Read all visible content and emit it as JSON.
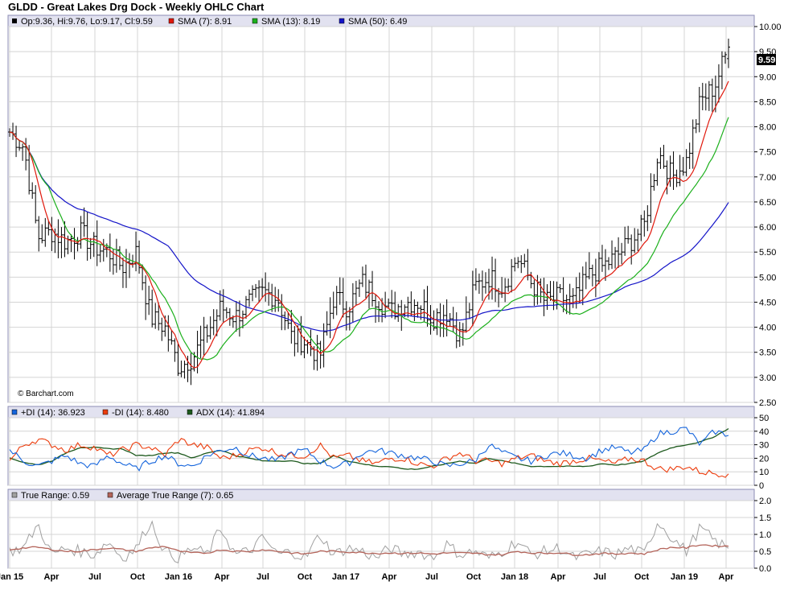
{
  "title": "GLDD - Great Lakes Drg Dock - Weekly OHLC Chart",
  "copyright": "© Barchart.com",
  "colors": {
    "bg": "#ffffff",
    "panel_border": "#8c8cb4",
    "header_bg": "#e2e2f0",
    "grid": "#d4d4d4",
    "ohlc": "#000000",
    "sma7": "#e0180c",
    "sma13": "#1cb01c",
    "sma50": "#1414c8",
    "pdi": "#1464dc",
    "mdi": "#ec3c0c",
    "adx": "#1e5a1e",
    "tr": "#a0a0a0",
    "atr": "#b4645a"
  },
  "price_legend": {
    "ohlc": "Op:9.36, Hi:9.76, Lo:9.17, Cl:9.59",
    "sma7": "SMA (7): 8.91",
    "sma13": "SMA (13): 8.19",
    "sma50": "SMA (50): 6.49"
  },
  "dmi_legend": {
    "pdi": "+DI (14): 36.923",
    "mdi": "-DI (14): 8.480",
    "adx": "ADX (14): 41.894"
  },
  "tr_legend": {
    "tr": "True Range: 0.59",
    "atr": "Average True Range (7): 0.65"
  },
  "last_price_label": "9.59",
  "x_labels": [
    "Jan 15",
    "Apr",
    "Jul",
    "Oct",
    "Jan 16",
    "Apr",
    "Jul",
    "Oct",
    "Jan 17",
    "Apr",
    "Jul",
    "Oct",
    "Jan 18",
    "Apr",
    "Jul",
    "Oct",
    "Jan 19",
    "Apr"
  ],
  "chart_data": [
    {
      "type": "ohlc",
      "title": "GLDD - Great Lakes Drg Dock - Weekly OHLC Chart",
      "frequency": "weekly",
      "x_range": [
        "Jan 15",
        "Apr 19"
      ],
      "ylim": [
        2.5,
        10.0
      ],
      "y_ticks": [
        2.5,
        3.0,
        3.5,
        4.0,
        4.5,
        5.0,
        5.5,
        6.0,
        6.5,
        7.0,
        7.5,
        8.0,
        8.5,
        9.0,
        9.5,
        10.0
      ],
      "y_tick_labels": [
        "2.50",
        "3.00",
        "3.50",
        "4.00",
        "4.50",
        "5.00",
        "5.50",
        "6.00",
        "6.50",
        "7.00",
        "7.50",
        "8.00",
        "8.50",
        "9.00",
        "9.50",
        "10.00"
      ],
      "grid": true,
      "last_bar": {
        "open": 9.36,
        "high": 9.76,
        "low": 9.17,
        "close": 9.59
      },
      "close_path": [
        {
          "x": "Jan 15",
          "y": 7.9
        },
        {
          "x": "Feb 15",
          "y": 7.6
        },
        {
          "x": "Mar 15",
          "y": 5.8
        },
        {
          "x": "Apr 15",
          "y": 5.9
        },
        {
          "x": "May 15",
          "y": 5.7
        },
        {
          "x": "Jun 15",
          "y": 5.9
        },
        {
          "x": "Jul 15",
          "y": 5.6
        },
        {
          "x": "Aug 15",
          "y": 5.5
        },
        {
          "x": "Sep 15",
          "y": 5.2
        },
        {
          "x": "Oct 15",
          "y": 5.5
        },
        {
          "x": "Nov 15",
          "y": 4.2
        },
        {
          "x": "Dec 15",
          "y": 4.0
        },
        {
          "x": "Jan 16",
          "y": 3.2
        },
        {
          "x": "Feb 16",
          "y": 3.4
        },
        {
          "x": "Mar 16",
          "y": 3.9
        },
        {
          "x": "Apr 16",
          "y": 4.4
        },
        {
          "x": "May 16",
          "y": 4.2
        },
        {
          "x": "Jun 16",
          "y": 4.5
        },
        {
          "x": "Jul 16",
          "y": 4.7
        },
        {
          "x": "Aug 16",
          "y": 4.6
        },
        {
          "x": "Sep 16",
          "y": 3.8
        },
        {
          "x": "Oct 16",
          "y": 3.7
        },
        {
          "x": "Nov 16",
          "y": 3.4
        },
        {
          "x": "Dec 16",
          "y": 4.6
        },
        {
          "x": "Jan 17",
          "y": 4.4
        },
        {
          "x": "Feb 17",
          "y": 4.9
        },
        {
          "x": "Mar 17",
          "y": 4.6
        },
        {
          "x": "Apr 17",
          "y": 4.3
        },
        {
          "x": "May 17",
          "y": 4.5
        },
        {
          "x": "Jun 17",
          "y": 4.5
        },
        {
          "x": "Jul 17",
          "y": 4.2
        },
        {
          "x": "Aug 17",
          "y": 4.3
        },
        {
          "x": "Sep 17",
          "y": 3.8
        },
        {
          "x": "Oct 17",
          "y": 4.8
        },
        {
          "x": "Nov 17",
          "y": 5.0
        },
        {
          "x": "Dec 17",
          "y": 4.8
        },
        {
          "x": "Jan 18",
          "y": 5.4
        },
        {
          "x": "Feb 18",
          "y": 4.9
        },
        {
          "x": "Mar 18",
          "y": 4.5
        },
        {
          "x": "Apr 18",
          "y": 4.6
        },
        {
          "x": "May 18",
          "y": 4.5
        },
        {
          "x": "Jun 18",
          "y": 5.0
        },
        {
          "x": "Jul 18",
          "y": 5.2
        },
        {
          "x": "Aug 18",
          "y": 5.4
        },
        {
          "x": "Sep 18",
          "y": 5.7
        },
        {
          "x": "Oct 18",
          "y": 6.0
        },
        {
          "x": "Nov 18",
          "y": 7.5
        },
        {
          "x": "Dec 18",
          "y": 7.0
        },
        {
          "x": "Jan 19",
          "y": 7.3
        },
        {
          "x": "Feb 19",
          "y": 8.5
        },
        {
          "x": "Mar 19",
          "y": 8.8
        },
        {
          "x": "Apr 19",
          "y": 9.59
        }
      ],
      "series": [
        {
          "name": "SMA (7)",
          "last": 8.91
        },
        {
          "name": "SMA (13)",
          "last": 8.19
        },
        {
          "name": "SMA (50)",
          "last": 6.49
        }
      ]
    },
    {
      "type": "line",
      "title": "DMI",
      "ylim": [
        0,
        50
      ],
      "y_ticks": [
        0,
        10,
        20,
        30,
        40,
        50
      ],
      "y_tick_labels": [
        "0",
        "10",
        "20",
        "30",
        "40",
        "50"
      ],
      "series": [
        {
          "name": "+DI (14)",
          "last": 36.923,
          "path": [
            26,
            18,
            14,
            18,
            22,
            16,
            14,
            22,
            16,
            12,
            18,
            22,
            16,
            14,
            22,
            26,
            28,
            22,
            20,
            18,
            24,
            26,
            18,
            14,
            16,
            24,
            26,
            24,
            22,
            20,
            18,
            14,
            16,
            18,
            30,
            24,
            20,
            18,
            22,
            24,
            22,
            20,
            26,
            28,
            24,
            26,
            38,
            40,
            42,
            30,
            40,
            37
          ]
        },
        {
          "name": "-DI (14)",
          "last": 8.48,
          "path": [
            18,
            30,
            34,
            30,
            26,
            30,
            28,
            22,
            26,
            30,
            28,
            22,
            34,
            30,
            28,
            20,
            22,
            26,
            28,
            24,
            22,
            22,
            30,
            20,
            22,
            18,
            16,
            20,
            20,
            16,
            14,
            20,
            24,
            18,
            18,
            16,
            20,
            22,
            18,
            16,
            18,
            20,
            18,
            16,
            20,
            18,
            12,
            12,
            14,
            10,
            9,
            8
          ]
        },
        {
          "name": "ADX (14)",
          "last": 41.894,
          "path": [
            20,
            17,
            15,
            18,
            24,
            28,
            28,
            27,
            27,
            22,
            22,
            24,
            24,
            20,
            24,
            26,
            22,
            20,
            18,
            18,
            18,
            16,
            16,
            22,
            18,
            16,
            14,
            14,
            12,
            12,
            14,
            16,
            18,
            16,
            20,
            18,
            16,
            14,
            14,
            14,
            14,
            14,
            16,
            15,
            16,
            18,
            24,
            28,
            30,
            32,
            36,
            42
          ]
        }
      ]
    },
    {
      "type": "line",
      "title": "True Range",
      "ylim": [
        0,
        2.0
      ],
      "y_ticks": [
        0,
        0.5,
        1.0,
        1.5,
        2.0
      ],
      "y_tick_labels": [
        "0.0",
        "0.5",
        "1.0",
        "1.5",
        "2.0"
      ],
      "series": [
        {
          "name": "True Range",
          "last": 0.59,
          "path": [
            0.5,
            0.6,
            1.3,
            0.4,
            0.6,
            0.5,
            0.4,
            0.8,
            0.3,
            0.6,
            1.4,
            0.5,
            0.3,
            0.6,
            0.4,
            1.2,
            0.4,
            0.5,
            0.9,
            0.4,
            0.5,
            0.3,
            1.0,
            0.4,
            0.6,
            0.5,
            0.3,
            0.6,
            0.4,
            0.5,
            0.3,
            0.7,
            0.4,
            0.5,
            0.3,
            0.5,
            0.8,
            0.4,
            0.5,
            0.6,
            0.3,
            0.4,
            0.5,
            0.4,
            0.6,
            0.4,
            1.4,
            0.9,
            0.5,
            1.2,
            0.8,
            0.59
          ]
        },
        {
          "name": "Average True Range (7)",
          "last": 0.65,
          "path": [
            0.55,
            0.6,
            0.62,
            0.55,
            0.5,
            0.5,
            0.55,
            0.6,
            0.55,
            0.5,
            0.6,
            0.65,
            0.5,
            0.45,
            0.45,
            0.55,
            0.5,
            0.5,
            0.55,
            0.5,
            0.45,
            0.42,
            0.5,
            0.5,
            0.48,
            0.46,
            0.44,
            0.45,
            0.44,
            0.45,
            0.42,
            0.45,
            0.45,
            0.44,
            0.4,
            0.4,
            0.5,
            0.45,
            0.44,
            0.46,
            0.4,
            0.4,
            0.44,
            0.42,
            0.45,
            0.42,
            0.55,
            0.62,
            0.6,
            0.7,
            0.66,
            0.65
          ]
        }
      ]
    }
  ]
}
